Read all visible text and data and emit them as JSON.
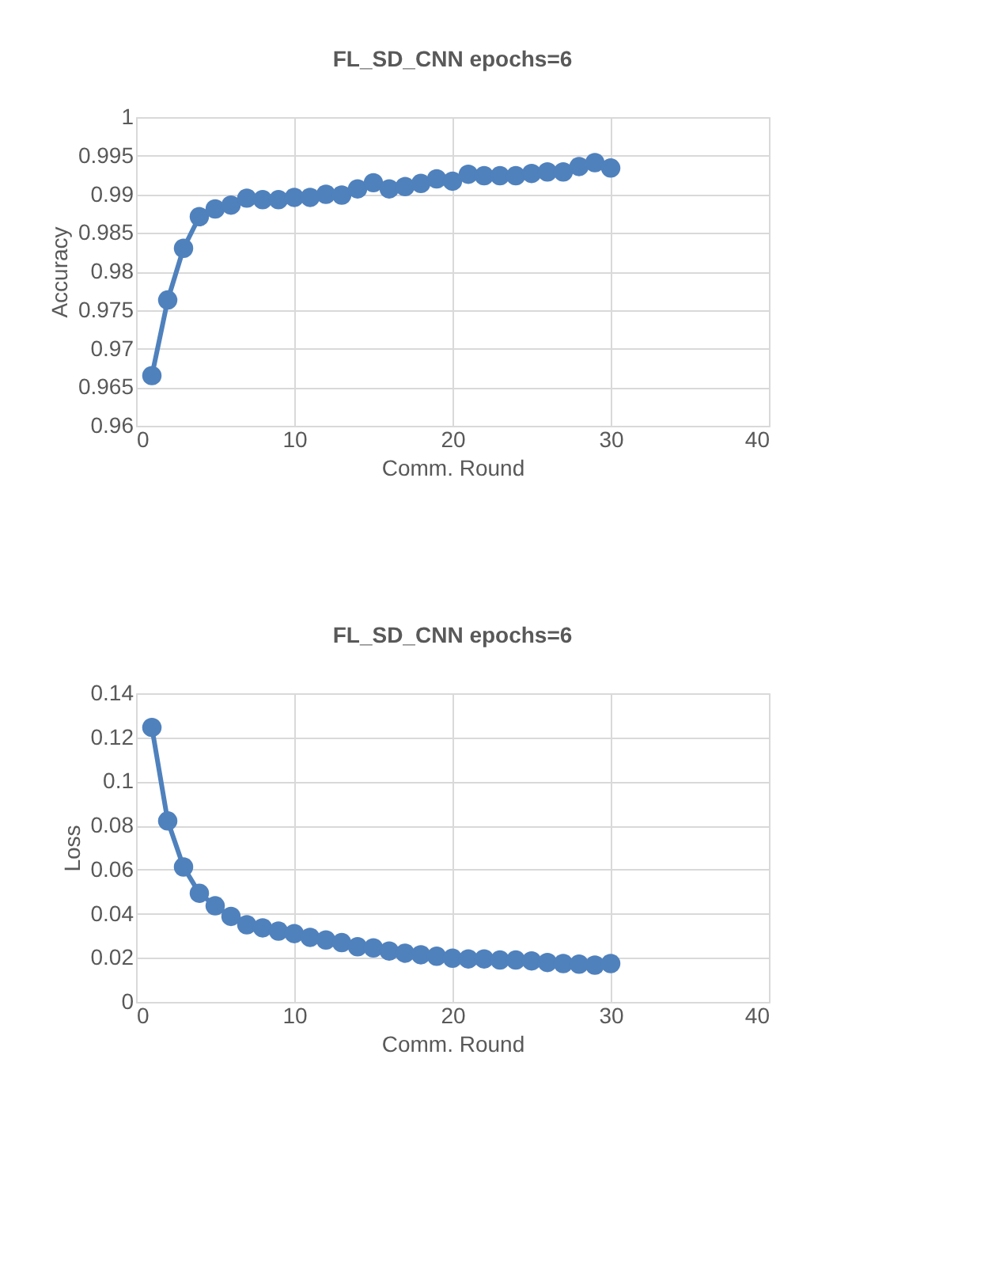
{
  "chart_data": [
    {
      "type": "line",
      "title": "FL_SD_CNN epochs=6",
      "xlabel": "Comm. Round",
      "ylabel": "Accuracy",
      "x": [
        1,
        2,
        3,
        4,
        5,
        6,
        7,
        8,
        9,
        10,
        11,
        12,
        13,
        14,
        15,
        16,
        17,
        18,
        19,
        20,
        21,
        22,
        23,
        24,
        25,
        26,
        27,
        28,
        29,
        30
      ],
      "series": [
        {
          "color": "#4f81bd",
          "values": [
            0.9665,
            0.9763,
            0.983,
            0.9871,
            0.9881,
            0.9886,
            0.9895,
            0.9893,
            0.9893,
            0.9896,
            0.9896,
            0.99,
            0.9899,
            0.9907,
            0.9915,
            0.9907,
            0.991,
            0.9914,
            0.992,
            0.9917,
            0.9926,
            0.9924,
            0.9924,
            0.9924,
            0.9927,
            0.9929,
            0.9929,
            0.9936,
            0.9941,
            0.9934
          ]
        }
      ],
      "xlim": [
        0,
        40
      ],
      "xticks": [
        0,
        10,
        20,
        30,
        40
      ],
      "ylim": [
        0.96,
        1
      ],
      "yticks": [
        0.96,
        0.965,
        0.97,
        0.975,
        0.98,
        0.985,
        0.99,
        0.995,
        1
      ],
      "grid": true,
      "marker": "circle",
      "line_style": "solid"
    },
    {
      "type": "line",
      "title": "FL_SD_CNN epochs=6",
      "xlabel": "Comm. Round",
      "ylabel": "Loss",
      "x": [
        1,
        2,
        3,
        4,
        5,
        6,
        7,
        8,
        9,
        10,
        11,
        12,
        13,
        14,
        15,
        16,
        17,
        18,
        19,
        20,
        21,
        22,
        23,
        24,
        25,
        26,
        27,
        28,
        29,
        30
      ],
      "series": [
        {
          "color": "#4f81bd",
          "values": [
            0.1245,
            0.0821,
            0.0612,
            0.0493,
            0.0436,
            0.0388,
            0.035,
            0.0336,
            0.0321,
            0.031,
            0.0293,
            0.0281,
            0.0269,
            0.025,
            0.0245,
            0.0231,
            0.0221,
            0.0214,
            0.0207,
            0.0198,
            0.0195,
            0.0195,
            0.019,
            0.019,
            0.0186,
            0.0179,
            0.0174,
            0.0171,
            0.0167,
            0.0174
          ]
        }
      ],
      "xlim": [
        0,
        40
      ],
      "xticks": [
        0,
        10,
        20,
        30,
        40
      ],
      "ylim": [
        0,
        0.14
      ],
      "yticks": [
        0,
        0.02,
        0.04,
        0.06,
        0.08,
        0.1,
        0.12,
        0.14
      ],
      "grid": true,
      "marker": "circle",
      "line_style": "solid"
    }
  ]
}
